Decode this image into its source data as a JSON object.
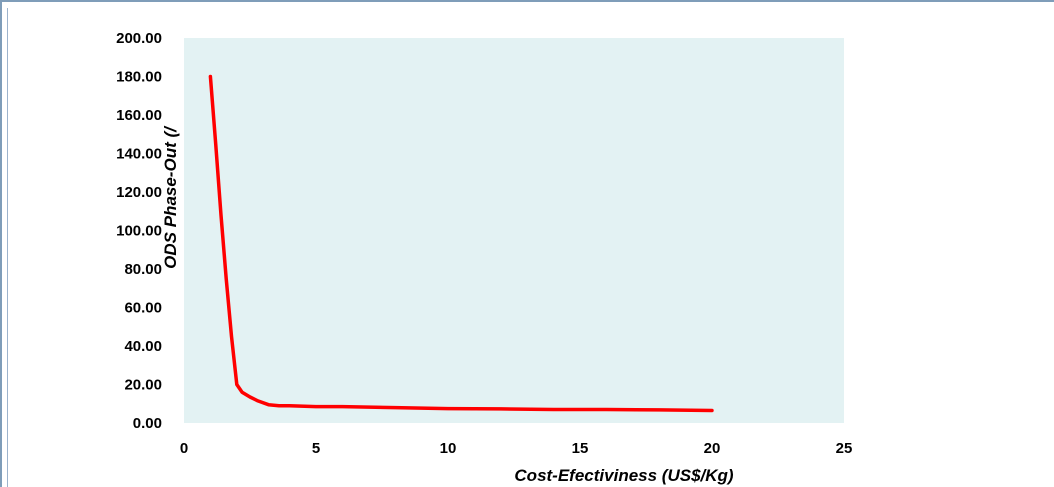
{
  "chart_data": {
    "type": "line",
    "title": "",
    "xlabel": "Cost-Efectiviness (US$/Kg)",
    "ylabel": "ODS Phase-Out (/",
    "xlim": [
      0,
      25
    ],
    "ylim": [
      0,
      200
    ],
    "x_ticks": [
      "0",
      "5",
      "10",
      "15",
      "20",
      "25"
    ],
    "y_ticks": [
      "0.00",
      "20.00",
      "40.00",
      "60.00",
      "80.00",
      "100.00",
      "120.00",
      "140.00",
      "160.00",
      "180.00",
      "200.00"
    ],
    "plot_background": "#e3f2f3",
    "grid": false,
    "legend": "none",
    "series": [
      {
        "color": "#ff0000",
        "x": [
          1,
          1.2,
          1.4,
          1.6,
          1.8,
          2.0,
          2.2,
          2.5,
          2.8,
          3.2,
          3.6,
          4,
          5,
          6,
          8,
          10,
          12,
          14,
          16,
          18,
          20
        ],
        "y": [
          180,
          145,
          108,
          75,
          45,
          20,
          16,
          13.5,
          11.5,
          9.5,
          9,
          9,
          8.5,
          8.5,
          8,
          7.5,
          7.3,
          7,
          7,
          6.8,
          6.5
        ]
      }
    ]
  }
}
